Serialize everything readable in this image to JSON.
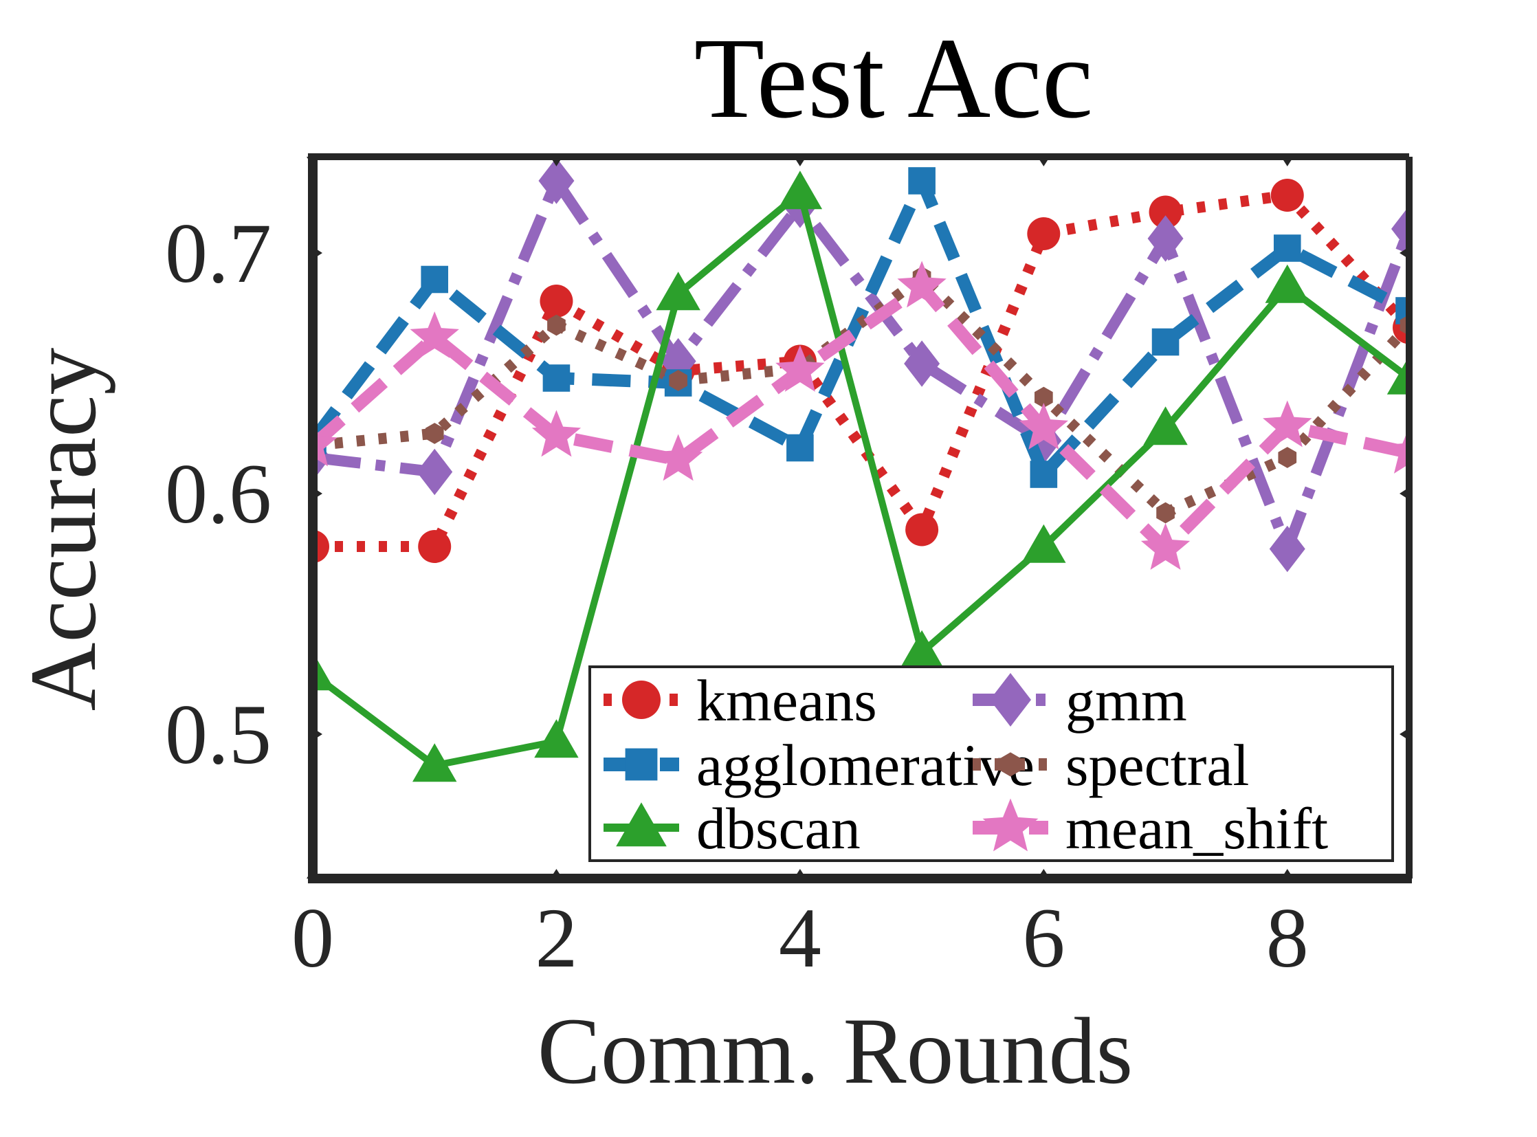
{
  "chart_data": {
    "type": "line",
    "title": "Test Acc",
    "xlabel": "Comm. Rounds",
    "ylabel": "Accuracy",
    "xlim": [
      0,
      9
    ],
    "ylim": [
      0.44,
      0.74
    ],
    "xticks": [
      0,
      2,
      4,
      6,
      8
    ],
    "xtick_labels": [
      "0",
      "2",
      "4",
      "6",
      "8"
    ],
    "yticks": [
      0.5,
      0.6,
      0.7
    ],
    "ytick_labels": [
      "0.5",
      "0.6",
      "0.7"
    ],
    "grid": false,
    "legend_position": "lower-right",
    "x": [
      0,
      1,
      2,
      3,
      4,
      5,
      6,
      7,
      8,
      9
    ],
    "series": [
      {
        "name": "kmeans",
        "color": "#d62728",
        "style": "dotted",
        "marker": "circle",
        "values": [
          0.578,
          0.578,
          0.68,
          0.651,
          0.655,
          0.585,
          0.708,
          0.717,
          0.724,
          0.669
        ]
      },
      {
        "name": "gmm",
        "color": "#9467bd",
        "style": "dashdot",
        "marker": "diamond",
        "values": [
          0.615,
          0.609,
          0.73,
          0.655,
          0.72,
          0.654,
          0.622,
          0.706,
          0.577,
          0.71
        ]
      },
      {
        "name": "agglomerative",
        "color": "#1f77b4",
        "style": "dashed",
        "marker": "square",
        "values": [
          0.622,
          0.689,
          0.648,
          0.646,
          0.619,
          0.73,
          0.608,
          0.663,
          0.702,
          0.676
        ]
      },
      {
        "name": "spectral",
        "color": "#8c564b",
        "style": "dotted",
        "marker": "hexagon",
        "values": [
          0.62,
          0.625,
          0.67,
          0.647,
          0.652,
          0.69,
          0.64,
          0.592,
          0.615,
          0.67
        ]
      },
      {
        "name": "dbscan",
        "color": "#2ca02c",
        "style": "solid",
        "marker": "triangle",
        "values": [
          0.525,
          0.487,
          0.497,
          0.683,
          0.725,
          0.534,
          0.578,
          0.627,
          0.686,
          0.648
        ]
      },
      {
        "name": "mean_shift",
        "color": "#e377c2",
        "style": "dashed",
        "marker": "star",
        "values": [
          0.62,
          0.665,
          0.624,
          0.614,
          0.651,
          0.686,
          0.627,
          0.577,
          0.628,
          0.617
        ]
      }
    ]
  }
}
